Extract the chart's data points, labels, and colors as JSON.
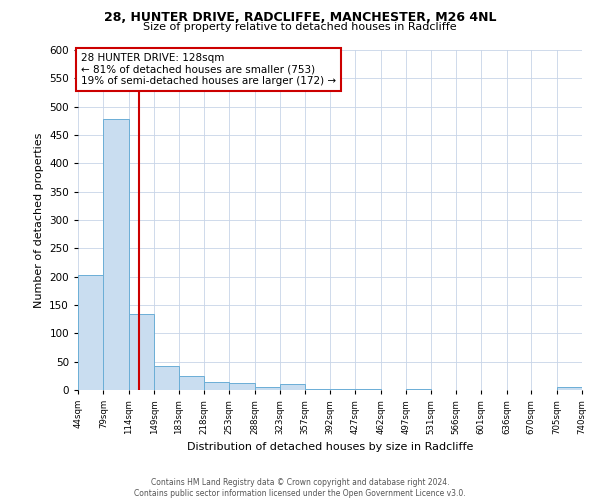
{
  "title_line1": "28, HUNTER DRIVE, RADCLIFFE, MANCHESTER, M26 4NL",
  "title_line2": "Size of property relative to detached houses in Radcliffe",
  "xlabel": "Distribution of detached houses by size in Radcliffe",
  "ylabel": "Number of detached properties",
  "annotation_line1": "28 HUNTER DRIVE: 128sqm",
  "annotation_line2": "← 81% of detached houses are smaller (753)",
  "annotation_line3": "19% of semi-detached houses are larger (172) →",
  "vline_x": 128,
  "bar_edges": [
    44,
    79,
    114,
    149,
    183,
    218,
    253,
    288,
    323,
    357,
    392,
    427,
    462,
    497,
    531,
    566,
    601,
    636,
    670,
    705,
    740
  ],
  "bar_heights": [
    203,
    478,
    135,
    43,
    25,
    15,
    12,
    5,
    10,
    2,
    1,
    1,
    0,
    1,
    0,
    0,
    0,
    0,
    0,
    5
  ],
  "bar_color": "#c9ddf0",
  "bar_edge_color": "#6baed6",
  "vline_color": "#cc0000",
  "annotation_box_color": "#cc0000",
  "background_color": "#ffffff",
  "grid_color": "#c8d4e8",
  "ylim": [
    0,
    600
  ],
  "yticks": [
    0,
    50,
    100,
    150,
    200,
    250,
    300,
    350,
    400,
    450,
    500,
    550,
    600
  ],
  "footer_line1": "Contains HM Land Registry data © Crown copyright and database right 2024.",
  "footer_line2": "Contains public sector information licensed under the Open Government Licence v3.0."
}
